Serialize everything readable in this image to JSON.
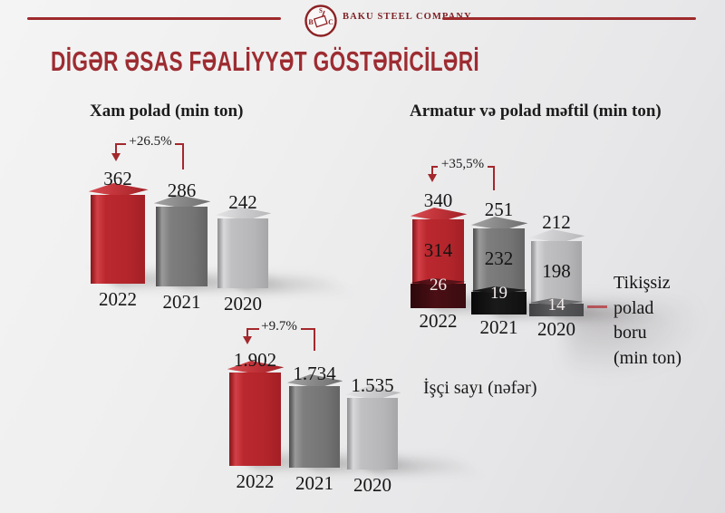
{
  "header": {
    "company_name": "BAKU STEEL COMPANY",
    "logo_letters": {
      "left": "B",
      "top": "S",
      "right": "C"
    },
    "rule_color": "#9e2a2c"
  },
  "page_title": "DİGƏR ƏSAS FƏALİYYƏT GÖSTƏRİCİLƏRİ",
  "colors": {
    "title_red": "#9d2c31",
    "bracket_red": "#a3282c",
    "bar_red": "#b2252b",
    "bar_gray": "#757575",
    "bar_light_gray": "#b6b6b8",
    "segment_maroon": "#3a0c10",
    "segment_black": "#111111",
    "segment_dark_gray": "#4a4a4c"
  },
  "chart_data": [
    {
      "id": "xam-polad",
      "type": "bar",
      "title": "Xam polad (min ton)",
      "categories": [
        "2022",
        "2021",
        "2020"
      ],
      "values": [
        362,
        286,
        242
      ],
      "value_labels": [
        "362",
        "286",
        "242"
      ],
      "annotation": {
        "text": "+26.5%"
      },
      "grid": false,
      "legend_position": "none"
    },
    {
      "id": "armatur-ve-polad-meftil",
      "type": "bar",
      "stacked": true,
      "title": "Armatur və polad məftil (min ton)",
      "categories": [
        "2022",
        "2021",
        "2020"
      ],
      "totals": [
        340,
        251,
        212
      ],
      "series": [
        {
          "name": "Armatur və polad məftil (min ton)",
          "values": [
            314,
            232,
            198
          ]
        },
        {
          "name": "Tikişsiz polad boru (min ton)",
          "values": [
            26,
            19,
            14
          ]
        }
      ],
      "annotation": {
        "text": "+35,5%"
      },
      "side_note": "Tikişsiz\npolad\nboru\n(min ton)",
      "grid": false,
      "legend_position": "none"
    },
    {
      "id": "isci-sayi",
      "type": "bar",
      "title": "İşçi sayı (nəfər)",
      "categories": [
        "2022",
        "2021",
        "2020"
      ],
      "values": [
        1902,
        1734,
        1535
      ],
      "value_labels": [
        "1.902",
        "1.734",
        "1.535"
      ],
      "annotation": {
        "text": "+9.7%"
      },
      "grid": false,
      "legend_position": "none"
    }
  ]
}
